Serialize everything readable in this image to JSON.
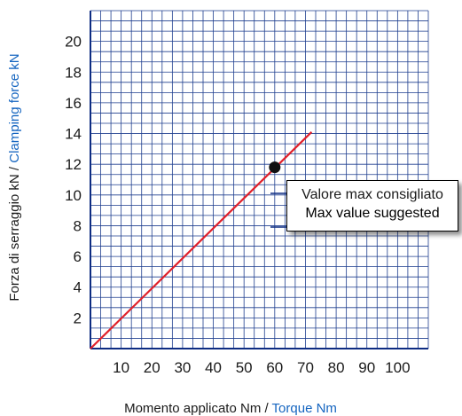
{
  "chart_data": {
    "type": "line",
    "x_ticks": [
      "10",
      "20",
      "30",
      "40",
      "50",
      "60",
      "70",
      "80",
      "90",
      "100"
    ],
    "y_ticks": [
      "2",
      "4",
      "6",
      "8",
      "10",
      "12",
      "14",
      "16",
      "18",
      "20"
    ],
    "xlim": [
      0,
      110
    ],
    "ylim": [
      0,
      22
    ],
    "grid": true,
    "xlabel": {
      "part1": "Momento applicato Nm / ",
      "part2": "Torque Nm"
    },
    "ylabel": {
      "part1": "Forza di serraggio kN  /  ",
      "part2": "Clamping force kN"
    },
    "series": [
      {
        "x": [
          0,
          72
        ],
        "y": [
          0,
          14.1
        ],
        "color": "#e0202a"
      }
    ],
    "highlight_point": {
      "x": 60,
      "y": 11.8
    },
    "annotation": {
      "line1": "Valore max consigliato",
      "line2": "Max value suggested"
    }
  },
  "colors": {
    "grid": "#1f3f8f",
    "axis": "#0d2c82",
    "line": "#e0202a",
    "label_accent": "#1565c0",
    "text": "#1a1a1a"
  }
}
